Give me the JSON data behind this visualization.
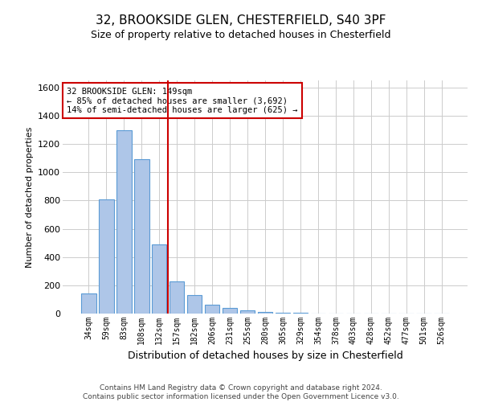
{
  "title_line1": "32, BROOKSIDE GLEN, CHESTERFIELD, S40 3PF",
  "title_line2": "Size of property relative to detached houses in Chesterfield",
  "xlabel": "Distribution of detached houses by size in Chesterfield",
  "ylabel": "Number of detached properties",
  "categories": [
    "34sqm",
    "59sqm",
    "83sqm",
    "108sqm",
    "132sqm",
    "157sqm",
    "182sqm",
    "206sqm",
    "231sqm",
    "255sqm",
    "280sqm",
    "305sqm",
    "329sqm",
    "354sqm",
    "378sqm",
    "403sqm",
    "428sqm",
    "452sqm",
    "477sqm",
    "501sqm",
    "526sqm"
  ],
  "values": [
    140,
    810,
    1300,
    1090,
    490,
    230,
    130,
    65,
    38,
    20,
    10,
    5,
    3,
    2,
    1,
    1,
    0,
    0,
    0,
    0,
    0
  ],
  "bar_color": "#aec6e8",
  "bar_edge_color": "#5b9bd5",
  "vline_x": 4.5,
  "vline_color": "#cc0000",
  "annotation_text": "32 BROOKSIDE GLEN: 149sqm\n← 85% of detached houses are smaller (3,692)\n14% of semi-detached houses are larger (625) →",
  "annotation_box_color": "#ffffff",
  "annotation_box_edge": "#cc0000",
  "ylim": [
    0,
    1650
  ],
  "yticks": [
    0,
    200,
    400,
    600,
    800,
    1000,
    1200,
    1400,
    1600
  ],
  "grid_color": "#cccccc",
  "background_color": "#ffffff",
  "footer_line1": "Contains HM Land Registry data © Crown copyright and database right 2024.",
  "footer_line2": "Contains public sector information licensed under the Open Government Licence v3.0."
}
